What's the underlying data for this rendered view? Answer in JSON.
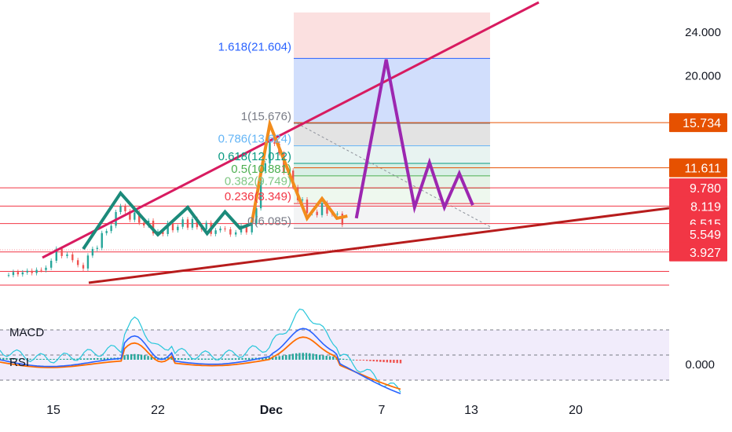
{
  "chart_data": [
    {
      "type": "line",
      "title": "",
      "x_axis": {
        "tick_labels": [
          "15",
          "22",
          "Dec",
          "7",
          "13",
          "20"
        ]
      },
      "y_axis": {
        "tick_labels": [
          "24.000",
          "20.000"
        ],
        "ylim": [
          0,
          25.5
        ]
      },
      "price_tags": [
        {
          "label": "15.734",
          "value": 15.734,
          "color": "#e65100"
        },
        {
          "label": "11.611",
          "value": 11.611,
          "color": "#e65100"
        },
        {
          "label": "9.780",
          "value": 9.78,
          "color": "#f23645"
        },
        {
          "label": "8.119",
          "value": 8.119,
          "color": "#f23645"
        },
        {
          "label": "6.515",
          "value": 6.515,
          "color": "#f23645"
        },
        {
          "label": "5.549",
          "value": 5.549,
          "color": "#f23645"
        },
        {
          "label": "3.927",
          "value": 3.927,
          "color": "#f23645"
        }
      ],
      "fibonacci": [
        {
          "label": "1.618(21.604)",
          "value": 21.604,
          "color": "#2962ff"
        },
        {
          "label": "1(15.676)",
          "value": 15.676,
          "color": "#787b86"
        },
        {
          "label": "0.786(13.624)",
          "value": 13.624,
          "color": "#64b5f6"
        },
        {
          "label": "0.618(12.012)",
          "value": 12.012,
          "color": "#089981"
        },
        {
          "label": "0.5(10.881)",
          "value": 10.881,
          "color": "#4caf50"
        },
        {
          "label": "0.382(9.749)",
          "value": 9.749,
          "color": "#81c784"
        },
        {
          "label": "0.236(8.349)",
          "value": 8.349,
          "color": "#f23645"
        },
        {
          "label": "0(6.085)",
          "value": 6.085,
          "color": "#787b86"
        }
      ],
      "pattern_paths": [
        {
          "color": "#1b8a7a",
          "points": [
            [
              17,
              4.2
            ],
            [
              19.5,
              9.3
            ],
            [
              21,
              7.0
            ],
            [
              22,
              5.5
            ],
            [
              24,
              8.0
            ],
            [
              25.3,
              5.6
            ],
            [
              26.5,
              7.6
            ],
            [
              27.5,
              6.1
            ],
            [
              28.3,
              6.5
            ]
          ]
        },
        {
          "color": "#f28c1c",
          "points": [
            [
              28.3,
              6.6
            ],
            [
              29.5,
              15.6
            ],
            [
              32,
              7.0
            ],
            [
              33,
              8.8
            ],
            [
              34,
              7.0
            ],
            [
              34.7,
              7.2
            ]
          ]
        },
        {
          "color": "#9c27b0",
          "points": [
            [
              35.3,
              7.0
            ],
            [
              37.3,
              21.5
            ],
            [
              39.2,
              8.0
            ],
            [
              40.2,
              12.1
            ],
            [
              41.2,
              8.0
            ],
            [
              42.2,
              11.1
            ],
            [
              43.1,
              8.2
            ]
          ]
        }
      ],
      "overlay": {
        "tick_labels": [
          "0.000"
        ],
        "indicators": [
          "MACD",
          "RSI"
        ],
        "colors": {
          "macd": "#2962ff",
          "signal": "#ff6d00",
          "rsi": "#26c6da",
          "hist_up": "#26a69a",
          "hist_down": "#ef5350"
        }
      }
    }
  ]
}
